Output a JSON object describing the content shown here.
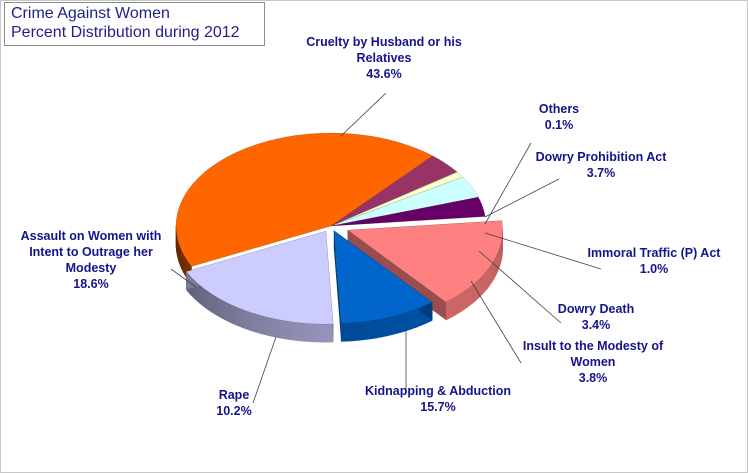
{
  "chart_data": {
    "type": "pie",
    "title_lines": [
      "Crime Against Women",
      "Percent Distribution during 2012"
    ],
    "slices": [
      {
        "label": [
          "Cruelty by Husband or his",
          "Relatives"
        ],
        "value": 43.6,
        "value_text": "43.6%",
        "color": "#ff6600"
      },
      {
        "label": [
          "Dowry Prohibition Act"
        ],
        "value": 3.7,
        "value_text": "3.7%",
        "color": "#993366"
      },
      {
        "label": [
          "Others"
        ],
        "value": 0.1,
        "value_text": "0.1%",
        "color": "#b7dee8"
      },
      {
        "label": [
          "Immoral Traffic (P) Act"
        ],
        "value": 1.0,
        "value_text": "1.0%",
        "color": "#ffffcc"
      },
      {
        "label": [
          "Insult to the Modesty of",
          "Women"
        ],
        "value": 3.8,
        "value_text": "3.8%",
        "color": "#ccffff"
      },
      {
        "label": [
          "Dowry Death"
        ],
        "value": 3.4,
        "value_text": "3.4%",
        "color": "#660066"
      },
      {
        "label": [
          "Kidnapping & Abduction"
        ],
        "value": 15.7,
        "value_text": "15.7%",
        "color": "#ff8080"
      },
      {
        "label": [
          "Rape"
        ],
        "value": 10.2,
        "value_text": "10.2%",
        "color": "#0066cc"
      },
      {
        "label": [
          "Assault on Women with",
          "Intent to Outrage her",
          "Modesty"
        ],
        "value": 18.6,
        "value_text": "18.6%",
        "color": "#ccccff"
      }
    ]
  }
}
